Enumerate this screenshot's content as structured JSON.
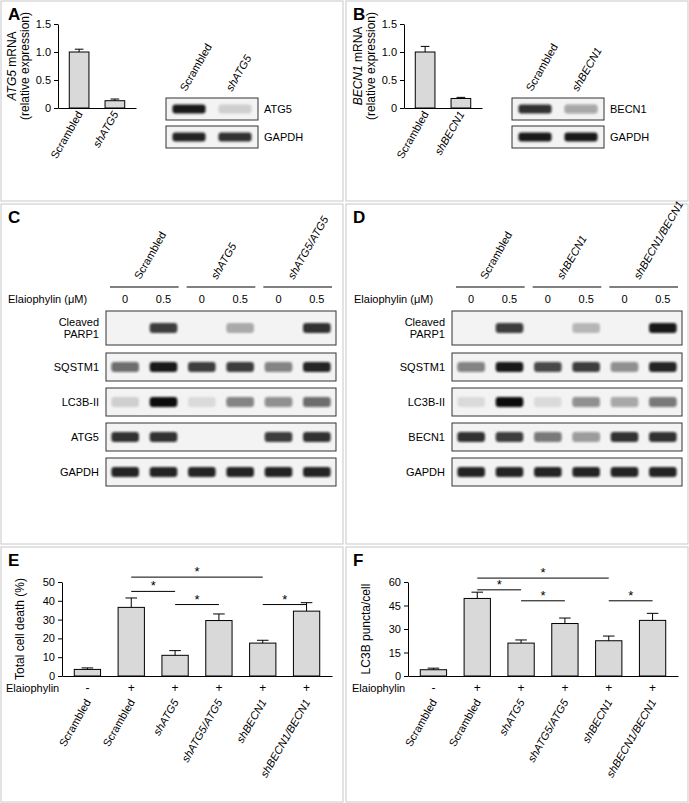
{
  "panels": [
    "A",
    "B",
    "C",
    "D",
    "E",
    "F"
  ],
  "chart_data": [
    {
      "type": "bar",
      "y_label": [
        "ATG5 mRNA",
        "(relative expression)"
      ],
      "categories": [
        "Scrambled",
        "shATG5"
      ],
      "values": [
        1.0,
        0.13
      ],
      "errors": [
        0.05,
        0.03
      ],
      "color": "#d9d9d9",
      "ylim": [
        0,
        1.5
      ],
      "yticks": [
        0,
        0.5,
        {
          "value": 1,
          "label": "1.0"
        },
        1.5
      ]
    },
    {
      "type": "bar",
      "y_label": [
        "BECN1 mRNA",
        "(relative expression)"
      ],
      "categories": [
        "Scrambled",
        "shBECN1"
      ],
      "values": [
        1.0,
        0.17
      ],
      "errors": [
        0.1,
        0.02
      ],
      "color": "#d9d9d9",
      "ylim": [
        0,
        1.5
      ],
      "yticks": [
        0,
        0.5,
        {
          "value": 1,
          "label": "1.0"
        },
        1.5
      ]
    },
    {
      "type": "bar",
      "y_label": "Total cell death (%)",
      "categories": [
        "Scrambled",
        "Scrambled",
        "shATG5",
        "shATG5/ATG5",
        "shBECN1",
        "shBECN1/BECN1"
      ],
      "values": [
        3.5,
        36.5,
        11,
        29.5,
        17.5,
        34.5
      ],
      "errors": [
        0.8,
        5,
        2.5,
        3.5,
        1.5,
        4.5
      ],
      "color": "#d9d9d9",
      "ylim": [
        0,
        50
      ],
      "yticks": [
        0,
        10,
        20,
        30,
        40,
        50
      ],
      "treatment_label": "Elaiophylin",
      "treatment_marks": [
        "-",
        "+",
        "+",
        "+",
        "+",
        "+"
      ],
      "annotations": [
        {
          "text": "*",
          "from": 1,
          "to": 2,
          "y": 45
        },
        {
          "text": "*",
          "from": 2,
          "to": 3,
          "y": 38
        },
        {
          "text": "*",
          "from": 1,
          "to": 4,
          "y": 52.6
        },
        {
          "text": "*",
          "from": 4,
          "to": 5,
          "y": 38
        }
      ]
    },
    {
      "type": "bar",
      "y_label": "LC3B puncta/cell",
      "categories": [
        "Scrambled",
        "Scrambled",
        "shATG5",
        "shATG5/ATG5",
        "shBECN1",
        "shBECN1/BECN1"
      ],
      "values": [
        4,
        49.5,
        21,
        33.5,
        22.5,
        35.5
      ],
      "errors": [
        1,
        4,
        2,
        3.5,
        3,
        4.5
      ],
      "color": "#d9d9d9",
      "ylim": [
        0,
        60
      ],
      "yticks": [
        0,
        15,
        30,
        45,
        60
      ],
      "treatment_label": "Elaiophylin",
      "treatment_marks": [
        "-",
        "+",
        "+",
        "+",
        "+",
        "+"
      ],
      "annotations": [
        {
          "text": "*",
          "from": 1,
          "to": 2,
          "y": 55
        },
        {
          "text": "*",
          "from": 2,
          "to": 3,
          "y": 48
        },
        {
          "text": "*",
          "from": 1,
          "to": 4,
          "y": 62.5
        },
        {
          "text": "*",
          "from": 4,
          "to": 5,
          "y": 48
        }
      ]
    }
  ],
  "blots": [
    {
      "lanes": [
        "Scrambled",
        "shATG5"
      ],
      "rows": [
        {
          "label": "ATG5",
          "bands": [
            0.95,
            0.15
          ]
        },
        {
          "label": "GAPDH",
          "bands": [
            0.9,
            0.85
          ]
        }
      ]
    },
    {
      "lanes": [
        "Scrambled",
        "shBECN1"
      ],
      "rows": [
        {
          "label": "BECN1",
          "bands": [
            0.85,
            0.35
          ]
        },
        {
          "label": "GAPDH",
          "bands": [
            0.95,
            0.95
          ]
        }
      ]
    },
    {
      "groups": [
        "Scrambled",
        "shATG5",
        "shATG5/ATG5"
      ],
      "treatment_label": "Elaiophylin (μM)",
      "doses": [
        0,
        0.5,
        0,
        0.5,
        0,
        0.5
      ],
      "rows": [
        {
          "label": [
            "Cleaved",
            "PARP1"
          ],
          "bands": [
            0,
            0.8,
            0,
            0.3,
            0,
            0.85
          ]
        },
        {
          "label": "SQSTM1",
          "bands": [
            0.6,
            0.95,
            0.8,
            0.8,
            0.5,
            0.9
          ]
        },
        {
          "label": "LC3B-II",
          "bands": [
            0.15,
            1.0,
            0.1,
            0.5,
            0.45,
            0.6
          ]
        },
        {
          "label": "ATG5",
          "bands": [
            0.85,
            0.85,
            0,
            0,
            0.8,
            0.85
          ]
        },
        {
          "label": "GAPDH",
          "bands": [
            0.9,
            0.9,
            0.9,
            0.9,
            0.9,
            0.9
          ]
        }
      ]
    },
    {
      "groups": [
        "Scrambled",
        "shBECN1",
        "shBECN1/BECN1"
      ],
      "treatment_label": "Elaiophylin (μM)",
      "doses": [
        0,
        0.5,
        0,
        0.5,
        0,
        0.5
      ],
      "rows": [
        {
          "label": [
            "Cleaved",
            "PARP1"
          ],
          "bands": [
            0,
            0.8,
            0,
            0.25,
            0,
            0.95
          ]
        },
        {
          "label": "SQSTM1",
          "bands": [
            0.5,
            0.95,
            0.75,
            0.8,
            0.45,
            0.9
          ]
        },
        {
          "label": "LC3B-II",
          "bands": [
            0.1,
            1.0,
            0.1,
            0.45,
            0.35,
            0.55
          ]
        },
        {
          "label": "BECN1",
          "bands": [
            0.85,
            0.8,
            0.55,
            0.4,
            0.85,
            0.85
          ]
        },
        {
          "label": "GAPDH",
          "bands": [
            0.9,
            0.9,
            0.9,
            0.9,
            0.9,
            0.9
          ]
        }
      ]
    }
  ]
}
